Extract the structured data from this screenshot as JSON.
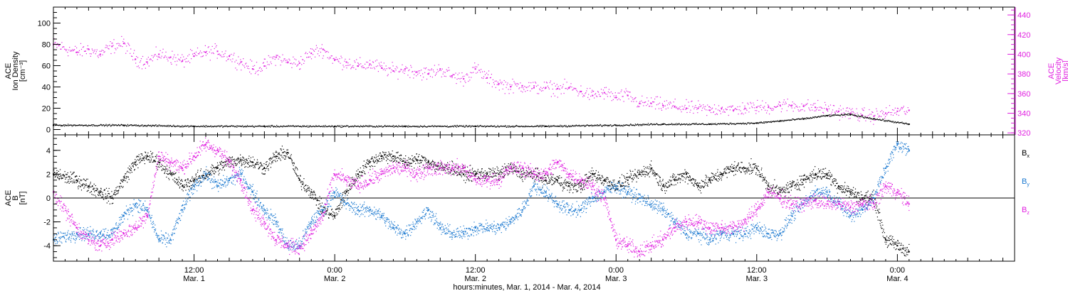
{
  "x_axis": {
    "label": "hours:minutes, Mar.  1, 2014 - Mar.  4, 2014",
    "ticks": [
      {
        "hour": 12,
        "time": "12:00",
        "date": "Mar. 1"
      },
      {
        "hour": 24,
        "time": "0:00",
        "date": "Mar. 2"
      },
      {
        "hour": 36,
        "time": "12:00",
        "date": "Mar. 2"
      },
      {
        "hour": 48,
        "time": "0:00",
        "date": "Mar. 3"
      },
      {
        "hour": 60,
        "time": "12:00",
        "date": "Mar. 3"
      },
      {
        "hour": 72,
        "time": "0:00",
        "date": "Mar. 4"
      }
    ],
    "range_hours": [
      0,
      82
    ]
  },
  "colors": {
    "black": "#000000",
    "magenta": "#e020e0",
    "blue": "#1a78d0"
  },
  "chart_data": [
    {
      "type": "scatter",
      "panel": "top",
      "left_axis": {
        "label_lines": [
          "ACE",
          "Ion Density",
          "[cm⁻³]"
        ],
        "ylim": [
          -5,
          115
        ],
        "ticks": [
          0,
          20,
          40,
          60,
          80,
          100
        ]
      },
      "right_axis": {
        "label_lines": [
          "ACE",
          "Velocity",
          "[km/s]"
        ],
        "ylim": [
          318,
          448
        ],
        "ticks": [
          320,
          340,
          360,
          380,
          400,
          420,
          440
        ]
      },
      "series": [
        {
          "axis": "right",
          "color": "magenta",
          "x": [
            0,
            2,
            3,
            4,
            5,
            6,
            7,
            8,
            9,
            10,
            11,
            12,
            13,
            14,
            15,
            16,
            17,
            18,
            19,
            20,
            21,
            22,
            23,
            24,
            25,
            26,
            27,
            28,
            29,
            30,
            31,
            32,
            33,
            34,
            35,
            36,
            37,
            38,
            39,
            40,
            41,
            42,
            43,
            44,
            45,
            46,
            47,
            48,
            49,
            50,
            51,
            52,
            53,
            54,
            55,
            56,
            57,
            58,
            59,
            60,
            61,
            62,
            63,
            64,
            65,
            66,
            67,
            68,
            69,
            70,
            71,
            72,
            73
          ],
          "y": [
            410,
            402,
            405,
            400,
            408,
            411,
            395,
            392,
            400,
            397,
            393,
            398,
            402,
            403,
            398,
            392,
            385,
            388,
            397,
            392,
            391,
            401,
            405,
            394,
            392,
            388,
            390,
            386,
            383,
            385,
            382,
            380,
            385,
            378,
            375,
            385,
            376,
            370,
            367,
            368,
            366,
            366,
            365,
            366,
            362,
            358,
            361,
            356,
            358,
            350,
            350,
            348,
            347,
            345,
            345,
            343,
            345,
            343,
            345,
            346,
            346,
            348,
            348,
            347,
            346,
            344,
            342,
            340,
            338,
            337,
            340,
            342,
            343
          ]
        },
        {
          "axis": "left",
          "color": "black",
          "x": [
            0,
            6,
            12,
            18,
            24,
            30,
            36,
            42,
            48,
            52,
            56,
            60,
            62,
            64,
            66,
            68,
            70,
            73
          ],
          "y": [
            4,
            4,
            3,
            3,
            3,
            3,
            3,
            3,
            4,
            5,
            5,
            6,
            8,
            10,
            13,
            14,
            10,
            5
          ]
        }
      ]
    },
    {
      "type": "scatter",
      "panel": "bottom",
      "left_axis": {
        "label_lines": [
          "ACE",
          "B",
          "[nT]"
        ],
        "ylim": [
          -5.3,
          5.3
        ],
        "ticks": [
          -4,
          -2,
          0,
          2,
          4
        ]
      },
      "legend": [
        {
          "label": "Bx",
          "main": "B",
          "sub": "x",
          "color": "black"
        },
        {
          "label": "By",
          "main": "B",
          "sub": "y",
          "color": "blue"
        },
        {
          "label": "Bz",
          "main": "B",
          "sub": "z",
          "color": "magenta"
        }
      ],
      "series": [
        {
          "name": "Bx",
          "color": "black",
          "x": [
            0,
            2,
            3,
            4,
            5,
            6,
            7,
            8,
            9,
            10,
            11,
            12,
            13,
            14,
            15,
            16,
            17,
            18,
            19,
            20,
            21,
            22,
            23,
            24,
            25,
            26,
            27,
            28,
            29,
            30,
            31,
            32,
            33,
            34,
            35,
            36,
            37,
            38,
            39,
            40,
            41,
            42,
            43,
            44,
            45,
            46,
            47,
            48,
            49,
            50,
            51,
            52,
            53,
            54,
            55,
            56,
            57,
            58,
            59,
            60,
            61,
            62,
            63,
            64,
            65,
            66,
            67,
            68,
            69,
            70,
            71,
            72,
            73
          ],
          "y": [
            2.0,
            1.5,
            1.0,
            0.5,
            0.0,
            1.5,
            3.0,
            3.5,
            3.0,
            2.0,
            1.0,
            1.5,
            2.0,
            2.5,
            3.0,
            3.2,
            3.0,
            2.5,
            3.5,
            3.8,
            1.5,
            0.5,
            -1.0,
            -1.5,
            0.5,
            2.0,
            3.0,
            3.5,
            3.5,
            3.0,
            3.2,
            3.0,
            2.5,
            2.5,
            2.0,
            2.0,
            2.0,
            2.0,
            2.5,
            2.0,
            2.0,
            1.5,
            1.5,
            1.0,
            1.0,
            2.0,
            1.5,
            1.0,
            1.5,
            2.0,
            2.5,
            1.0,
            1.5,
            2.0,
            1.0,
            1.5,
            2.0,
            2.5,
            2.5,
            2.5,
            1.0,
            0.5,
            1.0,
            1.5,
            2.0,
            2.0,
            1.0,
            0.5,
            0.0,
            0.0,
            -3.5,
            -4.0,
            -4.5
          ]
        },
        {
          "name": "By",
          "color": "blue",
          "x": [
            0,
            2,
            3,
            4,
            5,
            6,
            7,
            8,
            9,
            10,
            11,
            12,
            13,
            14,
            15,
            16,
            17,
            18,
            19,
            20,
            21,
            22,
            23,
            24,
            25,
            26,
            27,
            28,
            29,
            30,
            31,
            32,
            33,
            34,
            35,
            36,
            37,
            38,
            39,
            40,
            41,
            42,
            43,
            44,
            45,
            46,
            47,
            48,
            49,
            50,
            51,
            52,
            53,
            54,
            55,
            56,
            57,
            58,
            59,
            60,
            61,
            62,
            63,
            64,
            65,
            66,
            67,
            68,
            69,
            70,
            71,
            72,
            73
          ],
          "y": [
            -3.5,
            -3.0,
            -3.0,
            -3.0,
            -3.0,
            -1.5,
            -0.5,
            -1.0,
            -3.5,
            -3.5,
            -1.0,
            1.0,
            2.0,
            1.0,
            1.5,
            2.0,
            0.5,
            -1.0,
            -2.0,
            -4.0,
            -4.0,
            -2.0,
            -1.0,
            0.5,
            -0.5,
            -1.0,
            -1.0,
            -1.5,
            -2.5,
            -3.0,
            -2.0,
            -1.0,
            -2.5,
            -3.0,
            -3.0,
            -2.5,
            -2.5,
            -2.5,
            -2.0,
            -1.0,
            1.0,
            0.5,
            -0.5,
            -1.0,
            -1.0,
            0.0,
            0.5,
            1.0,
            0.5,
            0.0,
            -0.5,
            -1.0,
            -2.0,
            -3.0,
            -3.0,
            -3.5,
            -3.0,
            -3.0,
            -3.0,
            -2.5,
            -3.0,
            -3.0,
            -1.5,
            -0.5,
            0.5,
            0.5,
            -0.5,
            -1.5,
            -1.0,
            0.0,
            2.5,
            4.5,
            4.0
          ]
        },
        {
          "name": "Bz",
          "color": "magenta",
          "x": [
            0,
            2,
            3,
            4,
            5,
            6,
            7,
            8,
            9,
            10,
            11,
            12,
            13,
            14,
            15,
            16,
            17,
            18,
            19,
            20,
            21,
            22,
            23,
            24,
            25,
            26,
            27,
            28,
            29,
            30,
            31,
            32,
            33,
            34,
            35,
            36,
            37,
            38,
            39,
            40,
            41,
            42,
            43,
            44,
            45,
            46,
            47,
            48,
            49,
            50,
            51,
            52,
            53,
            54,
            55,
            56,
            57,
            58,
            59,
            60,
            61,
            62,
            63,
            64,
            65,
            66,
            67,
            68,
            69,
            70,
            71,
            72,
            73
          ],
          "y": [
            0.5,
            -2.5,
            -3.5,
            -4.0,
            -3.5,
            -3.0,
            -2.5,
            -1.5,
            3.5,
            3.0,
            2.5,
            3.5,
            4.5,
            4.0,
            3.0,
            1.5,
            -1.0,
            -2.0,
            -3.5,
            -4.0,
            -4.2,
            -3.0,
            -1.5,
            2.0,
            1.5,
            1.0,
            1.5,
            2.0,
            2.5,
            2.5,
            2.0,
            2.5,
            2.5,
            2.5,
            2.5,
            1.5,
            1.5,
            1.5,
            2.5,
            2.5,
            2.0,
            2.0,
            3.0,
            2.0,
            1.5,
            1.0,
            0.0,
            -3.5,
            -4.0,
            -4.5,
            -4.0,
            -3.5,
            -2.5,
            -2.0,
            -2.0,
            -2.5,
            -2.5,
            -2.5,
            -2.0,
            -1.0,
            0.5,
            0.0,
            -0.5,
            -0.5,
            -0.2,
            -0.5,
            -0.5,
            -0.8,
            -0.5,
            -0.5,
            1.0,
            0.5,
            -0.5
          ]
        }
      ]
    }
  ]
}
